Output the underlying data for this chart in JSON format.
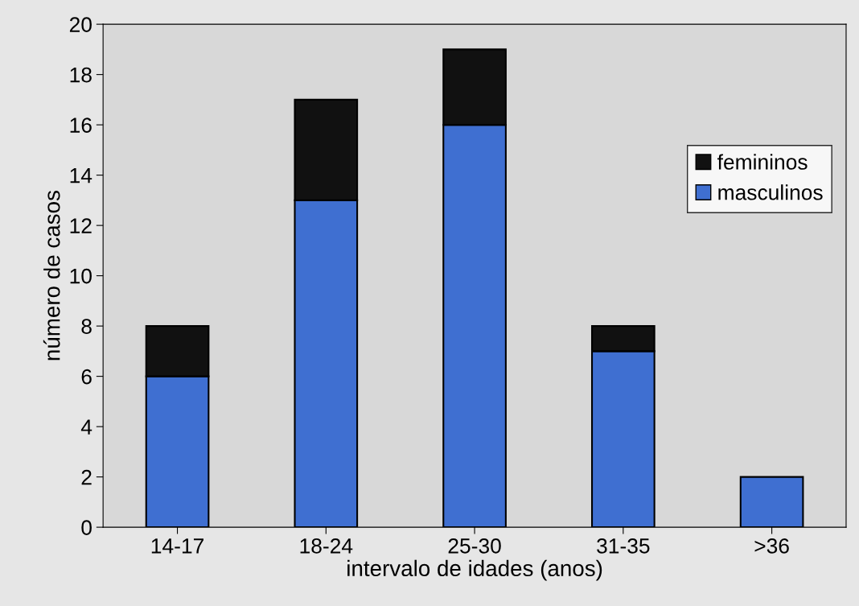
{
  "chart_data": {
    "type": "bar",
    "stacked": true,
    "xlabel": "intervalo de idades (anos)",
    "ylabel": "número de casos",
    "categories": [
      "14-17",
      "18-24",
      "25-30",
      "31-35",
      ">36"
    ],
    "series": [
      {
        "name": "masculinos",
        "color": "#3f6fd1",
        "values": [
          6,
          13,
          16,
          7,
          2
        ]
      },
      {
        "name": "femininos",
        "color": "#111111",
        "values": [
          2,
          4,
          3,
          1,
          0
        ]
      }
    ],
    "ylim": [
      0,
      20
    ],
    "yticks": [
      0,
      2,
      4,
      6,
      8,
      10,
      12,
      14,
      16,
      18,
      20
    ],
    "grid": false,
    "legend": "top right"
  }
}
